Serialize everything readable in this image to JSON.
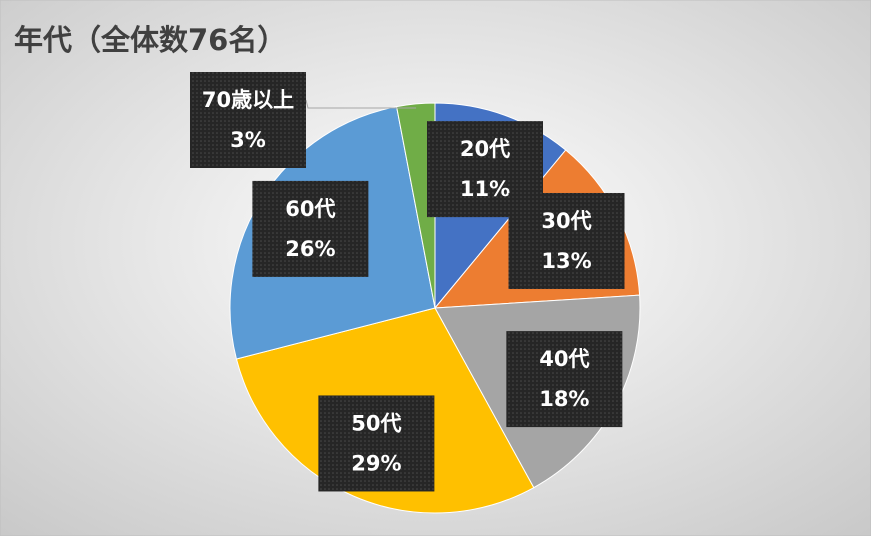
{
  "chart_data": {
    "type": "pie",
    "title": "年代（全体数76名）",
    "categories": [
      "20代",
      "30代",
      "40代",
      "50代",
      "60代",
      "70歳以上"
    ],
    "values": [
      11,
      13,
      18,
      29,
      26,
      3
    ],
    "value_labels": [
      "11%",
      "13%",
      "18%",
      "29%",
      "26%",
      "3%"
    ],
    "colors": [
      "#4472c4",
      "#ed7d31",
      "#a5a5a5",
      "#ffc000",
      "#5b9bd5",
      "#70ad47"
    ]
  }
}
